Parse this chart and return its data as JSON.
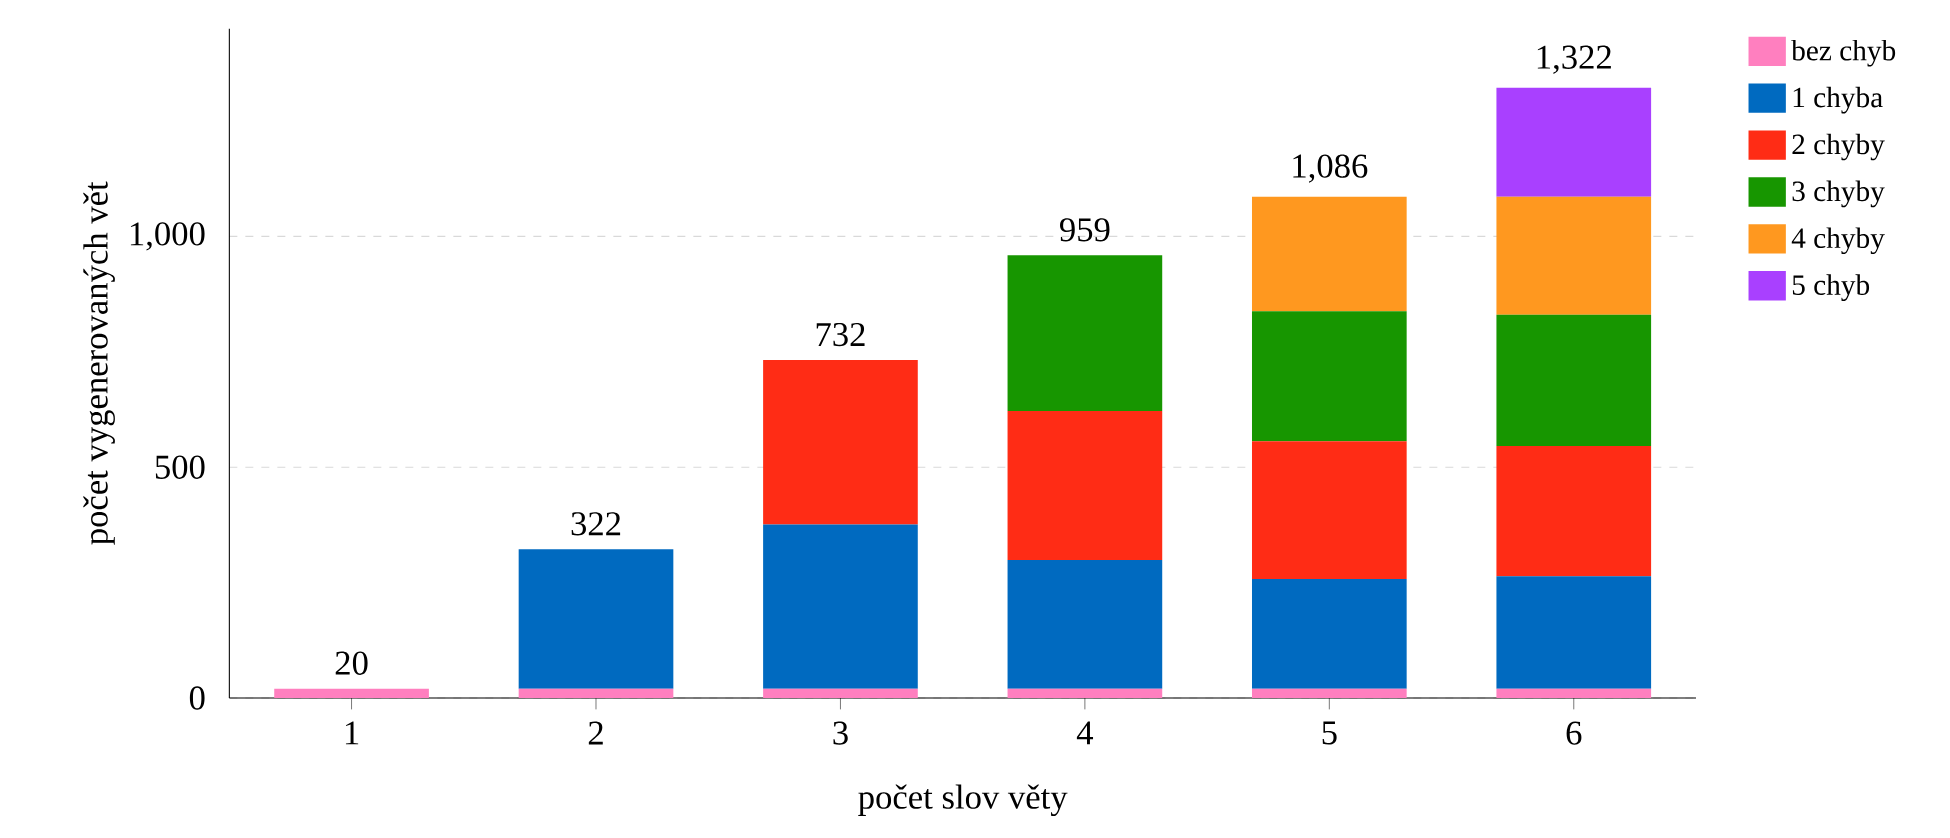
{
  "chart_data": {
    "type": "bar",
    "stacked": true,
    "xlabel": "počet slov věty",
    "ylabel": "počet vygenerovaných vět",
    "categories": [
      "1",
      "2",
      "3",
      "4",
      "5",
      "6"
    ],
    "series": [
      {
        "name": "bez chyb",
        "color": "#ff7fbf",
        "values": [
          20,
          20,
          20,
          20,
          20,
          20
        ]
      },
      {
        "name": "1 chyba",
        "color": "#006ac0",
        "values": [
          null,
          302,
          356,
          279,
          238,
          244
        ]
      },
      {
        "name": "2 chyby",
        "color": "#ff2c15",
        "values": [
          null,
          null,
          356,
          323,
          298,
          282
        ]
      },
      {
        "name": "3 chyby",
        "color": "#179600",
        "values": [
          null,
          null,
          null,
          337,
          282,
          284
        ]
      },
      {
        "name": "4 chyby",
        "color": "#ff981f",
        "values": [
          null,
          null,
          null,
          null,
          248,
          256
        ]
      },
      {
        "name": "5 chyb",
        "color": "#a940ff",
        "values": [
          null,
          null,
          null,
          null,
          null,
          236
        ]
      }
    ],
    "totals": [
      "20",
      "322",
      "732",
      "959",
      "1,086",
      "1,322"
    ],
    "ylim": [
      0,
      1450
    ],
    "yticks": [
      0,
      500,
      {
        "value": 1000,
        "label": "1,000"
      }
    ],
    "grid": "y",
    "legend": "right"
  }
}
